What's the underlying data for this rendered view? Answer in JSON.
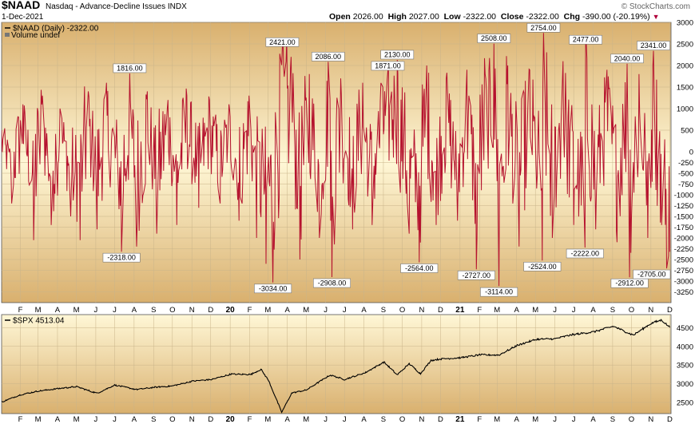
{
  "header": {
    "ticker": "$NAAD",
    "description": "Nasdaq - Advance-Decline Issues",
    "exchange": "INDX",
    "logo": "© StockCharts.com",
    "date": "1-Dec-2021",
    "open_label": "Open",
    "open": "2026.00",
    "high_label": "High",
    "high": "2027.00",
    "low_label": "Low",
    "low": "-2322.00",
    "close_label": "Close",
    "close": "-2322.00",
    "chg_label": "Chg",
    "chg": "-390.00 (-20.19%)",
    "chg_icon": "down-triangle-icon"
  },
  "chart_data": [
    {
      "type": "line",
      "panel": "top",
      "legend": [
        "$NAAD (Daily) -2322.00",
        "Volume undef"
      ],
      "series_color": "#b5122e",
      "background_gradient": [
        "#d9b06e",
        "#fff7d6",
        "#d9b06e"
      ],
      "ylim": [
        -3500,
        3000
      ],
      "yticks": [
        3000,
        2500,
        2000,
        1500,
        1000,
        500,
        0,
        -250,
        -500,
        -750,
        -1000,
        -1250,
        -1500,
        -1750,
        -2000,
        -2250,
        -2500,
        -2750,
        -3000,
        -3250
      ],
      "ytick_labels": [
        "3000",
        "2500",
        "2000",
        "1500",
        "1000",
        "500",
        "0",
        "-250",
        "-500",
        "-750",
        "-1000",
        "-1250",
        "-1500",
        "-1750",
        "-2000",
        "-2250",
        "-2500",
        "-2750",
        "-3000",
        "-3250"
      ],
      "x_labels": [
        "F",
        "M",
        "A",
        "M",
        "J",
        "J",
        "A",
        "S",
        "O",
        "N",
        "D",
        "20",
        "F",
        "M",
        "A",
        "M",
        "J",
        "J",
        "A",
        "S",
        "O",
        "N",
        "D",
        "21",
        "F",
        "M",
        "A",
        "M",
        "J",
        "J",
        "A",
        "S",
        "O",
        "N",
        "D"
      ],
      "annotations": [
        {
          "x": "2019-07-25",
          "y": 1816,
          "label": "1816.00",
          "pos": "above"
        },
        {
          "x": "2019-07-12",
          "y": -2318,
          "label": "-2318.00",
          "pos": "below"
        },
        {
          "x": "2020-03-09",
          "y": -3034,
          "label": "-3034.00",
          "pos": "below"
        },
        {
          "x": "2020-03-24",
          "y": 2421,
          "label": "2421.00",
          "pos": "above"
        },
        {
          "x": "2020-06-11",
          "y": -2908,
          "label": "-2908.00",
          "pos": "below"
        },
        {
          "x": "2020-06-05",
          "y": 2086,
          "label": "2086.00",
          "pos": "above"
        },
        {
          "x": "2020-09-08",
          "y": 1871,
          "label": "1871.00",
          "pos": "above"
        },
        {
          "x": "2020-09-23",
          "y": 2130,
          "label": "2130.00",
          "pos": "above"
        },
        {
          "x": "2020-10-28",
          "y": -2564,
          "label": "-2564.00",
          "pos": "below"
        },
        {
          "x": "2021-01-27",
          "y": -2727,
          "label": "-2727.00",
          "pos": "below"
        },
        {
          "x": "2021-02-24",
          "y": 2508,
          "label": "2508.00",
          "pos": "above"
        },
        {
          "x": "2021-03-04",
          "y": -3114,
          "label": "-3114.00",
          "pos": "below"
        },
        {
          "x": "2021-05-12",
          "y": -2524,
          "label": "-2524.00",
          "pos": "below"
        },
        {
          "x": "2021-05-14",
          "y": 2754,
          "label": "2754.00",
          "pos": "above"
        },
        {
          "x": "2021-07-19",
          "y": -2222,
          "label": "-2222.00",
          "pos": "below"
        },
        {
          "x": "2021-07-20",
          "y": 2477,
          "label": "2477.00",
          "pos": "above"
        },
        {
          "x": "2021-09-28",
          "y": -2912,
          "label": "-2912.00",
          "pos": "below"
        },
        {
          "x": "2021-09-24",
          "y": 2040,
          "label": "2040.00",
          "pos": "above"
        },
        {
          "x": "2021-11-05",
          "y": 2341,
          "label": "2341.00",
          "pos": "above"
        },
        {
          "x": "2021-11-26",
          "y": -2705,
          "label": "-2705.00",
          "pos": "below"
        }
      ],
      "swings": [
        [
          "2019-01-02",
          500
        ],
        [
          "2019-01-18",
          -1200
        ],
        [
          "2019-02-05",
          1100
        ],
        [
          "2019-02-22",
          -2050
        ],
        [
          "2019-03-08",
          1300
        ],
        [
          "2019-03-22",
          -1700
        ],
        [
          "2019-04-05",
          1000
        ],
        [
          "2019-04-22",
          -1500
        ],
        [
          "2019-05-07",
          -2050
        ],
        [
          "2019-05-20",
          1400
        ],
        [
          "2019-06-03",
          -1800
        ],
        [
          "2019-06-18",
          1600
        ],
        [
          "2019-07-12",
          -2318
        ],
        [
          "2019-07-25",
          1816
        ],
        [
          "2019-08-05",
          -2200
        ],
        [
          "2019-08-22",
          1400
        ],
        [
          "2019-09-06",
          -1900
        ],
        [
          "2019-09-24",
          1200
        ],
        [
          "2019-10-08",
          -1700
        ],
        [
          "2019-10-24",
          1300
        ],
        [
          "2019-11-12",
          -1300
        ],
        [
          "2019-11-29",
          1200
        ],
        [
          "2019-12-16",
          -1200
        ],
        [
          "2019-12-30",
          1100
        ],
        [
          "2020-01-15",
          -1600
        ],
        [
          "2020-01-31",
          1300
        ],
        [
          "2020-02-12",
          -2000
        ],
        [
          "2020-02-27",
          -2600
        ],
        [
          "2020-03-09",
          -3034
        ],
        [
          "2020-03-24",
          2421
        ],
        [
          "2020-04-07",
          2200
        ],
        [
          "2020-04-21",
          -2500
        ],
        [
          "2020-05-06",
          1800
        ],
        [
          "2020-05-22",
          -2000
        ],
        [
          "2020-06-05",
          2086
        ],
        [
          "2020-06-11",
          -2908
        ],
        [
          "2020-06-25",
          1700
        ],
        [
          "2020-07-14",
          -1800
        ],
        [
          "2020-07-30",
          1600
        ],
        [
          "2020-08-14",
          -1700
        ],
        [
          "2020-08-31",
          1500
        ],
        [
          "2020-09-08",
          1871
        ],
        [
          "2020-09-23",
          2130
        ],
        [
          "2020-10-12",
          -1900
        ],
        [
          "2020-10-28",
          -2564
        ],
        [
          "2020-11-09",
          2000
        ],
        [
          "2020-11-24",
          -1700
        ],
        [
          "2020-12-10",
          1700
        ],
        [
          "2020-12-28",
          -1600
        ],
        [
          "2021-01-12",
          1900
        ],
        [
          "2021-01-27",
          -2727
        ],
        [
          "2021-02-10",
          1800
        ],
        [
          "2021-02-24",
          2508
        ],
        [
          "2021-03-04",
          -3114
        ],
        [
          "2021-03-18",
          2000
        ],
        [
          "2021-04-05",
          -2200
        ],
        [
          "2021-04-22",
          1900
        ],
        [
          "2021-05-12",
          -2524
        ],
        [
          "2021-05-14",
          2754
        ],
        [
          "2021-05-28",
          -2000
        ],
        [
          "2021-06-14",
          2100
        ],
        [
          "2021-07-01",
          -1700
        ],
        [
          "2021-07-19",
          -2222
        ],
        [
          "2021-07-20",
          2477
        ],
        [
          "2021-08-05",
          -1800
        ],
        [
          "2021-08-23",
          1900
        ],
        [
          "2021-09-08",
          -2100
        ],
        [
          "2021-09-24",
          2040
        ],
        [
          "2021-09-28",
          -2912
        ],
        [
          "2021-10-13",
          1800
        ],
        [
          "2021-10-27",
          -2000
        ],
        [
          "2021-11-05",
          2341
        ],
        [
          "2021-11-18",
          -1700
        ],
        [
          "2021-11-26",
          -2705
        ],
        [
          "2021-12-01",
          -2322
        ]
      ]
    },
    {
      "type": "line",
      "panel": "bottom",
      "legend": [
        "$SPX 4513.04"
      ],
      "series_color": "#000000",
      "background_gradient": [
        "#fff7d6",
        "#d9b06e"
      ],
      "ylim": [
        2200,
        4850
      ],
      "yticks": [
        4500,
        4000,
        3500,
        3000,
        2500
      ],
      "ytick_labels": [
        "4500",
        "4000",
        "3500",
        "3000",
        "2500"
      ],
      "x_labels": [
        "F",
        "M",
        "A",
        "M",
        "J",
        "J",
        "A",
        "S",
        "O",
        "N",
        "D",
        "20",
        "F",
        "M",
        "A",
        "M",
        "J",
        "J",
        "A",
        "S",
        "O",
        "N",
        "D",
        "21",
        "F",
        "M",
        "A",
        "M",
        "J",
        "J",
        "A",
        "S",
        "O",
        "N",
        "D"
      ],
      "points": [
        [
          "2019-01-02",
          2510
        ],
        [
          "2019-02-01",
          2705
        ],
        [
          "2019-03-01",
          2803
        ],
        [
          "2019-04-01",
          2867
        ],
        [
          "2019-05-01",
          2923
        ],
        [
          "2019-06-03",
          2744
        ],
        [
          "2019-07-01",
          2964
        ],
        [
          "2019-08-05",
          2844
        ],
        [
          "2019-09-03",
          2906
        ],
        [
          "2019-10-01",
          2940
        ],
        [
          "2019-11-01",
          3066
        ],
        [
          "2019-12-02",
          3113
        ],
        [
          "2020-01-02",
          3257
        ],
        [
          "2020-02-03",
          3248
        ],
        [
          "2020-02-19",
          3386
        ],
        [
          "2020-03-02",
          3090
        ],
        [
          "2020-03-23",
          2237
        ],
        [
          "2020-04-08",
          2750
        ],
        [
          "2020-05-01",
          2830
        ],
        [
          "2020-06-08",
          3232
        ],
        [
          "2020-07-01",
          3115
        ],
        [
          "2020-08-03",
          3294
        ],
        [
          "2020-09-02",
          3580
        ],
        [
          "2020-09-23",
          3237
        ],
        [
          "2020-10-12",
          3534
        ],
        [
          "2020-10-30",
          3270
        ],
        [
          "2020-11-16",
          3626
        ],
        [
          "2020-12-01",
          3662
        ],
        [
          "2021-01-04",
          3700
        ],
        [
          "2021-02-01",
          3773
        ],
        [
          "2021-03-04",
          3768
        ],
        [
          "2021-04-01",
          4020
        ],
        [
          "2021-05-03",
          4192
        ],
        [
          "2021-06-01",
          4202
        ],
        [
          "2021-07-01",
          4320
        ],
        [
          "2021-08-02",
          4387
        ],
        [
          "2021-09-02",
          4537
        ],
        [
          "2021-10-04",
          4300
        ],
        [
          "2021-11-01",
          4613
        ],
        [
          "2021-11-18",
          4705
        ],
        [
          "2021-12-01",
          4513
        ]
      ]
    }
  ]
}
